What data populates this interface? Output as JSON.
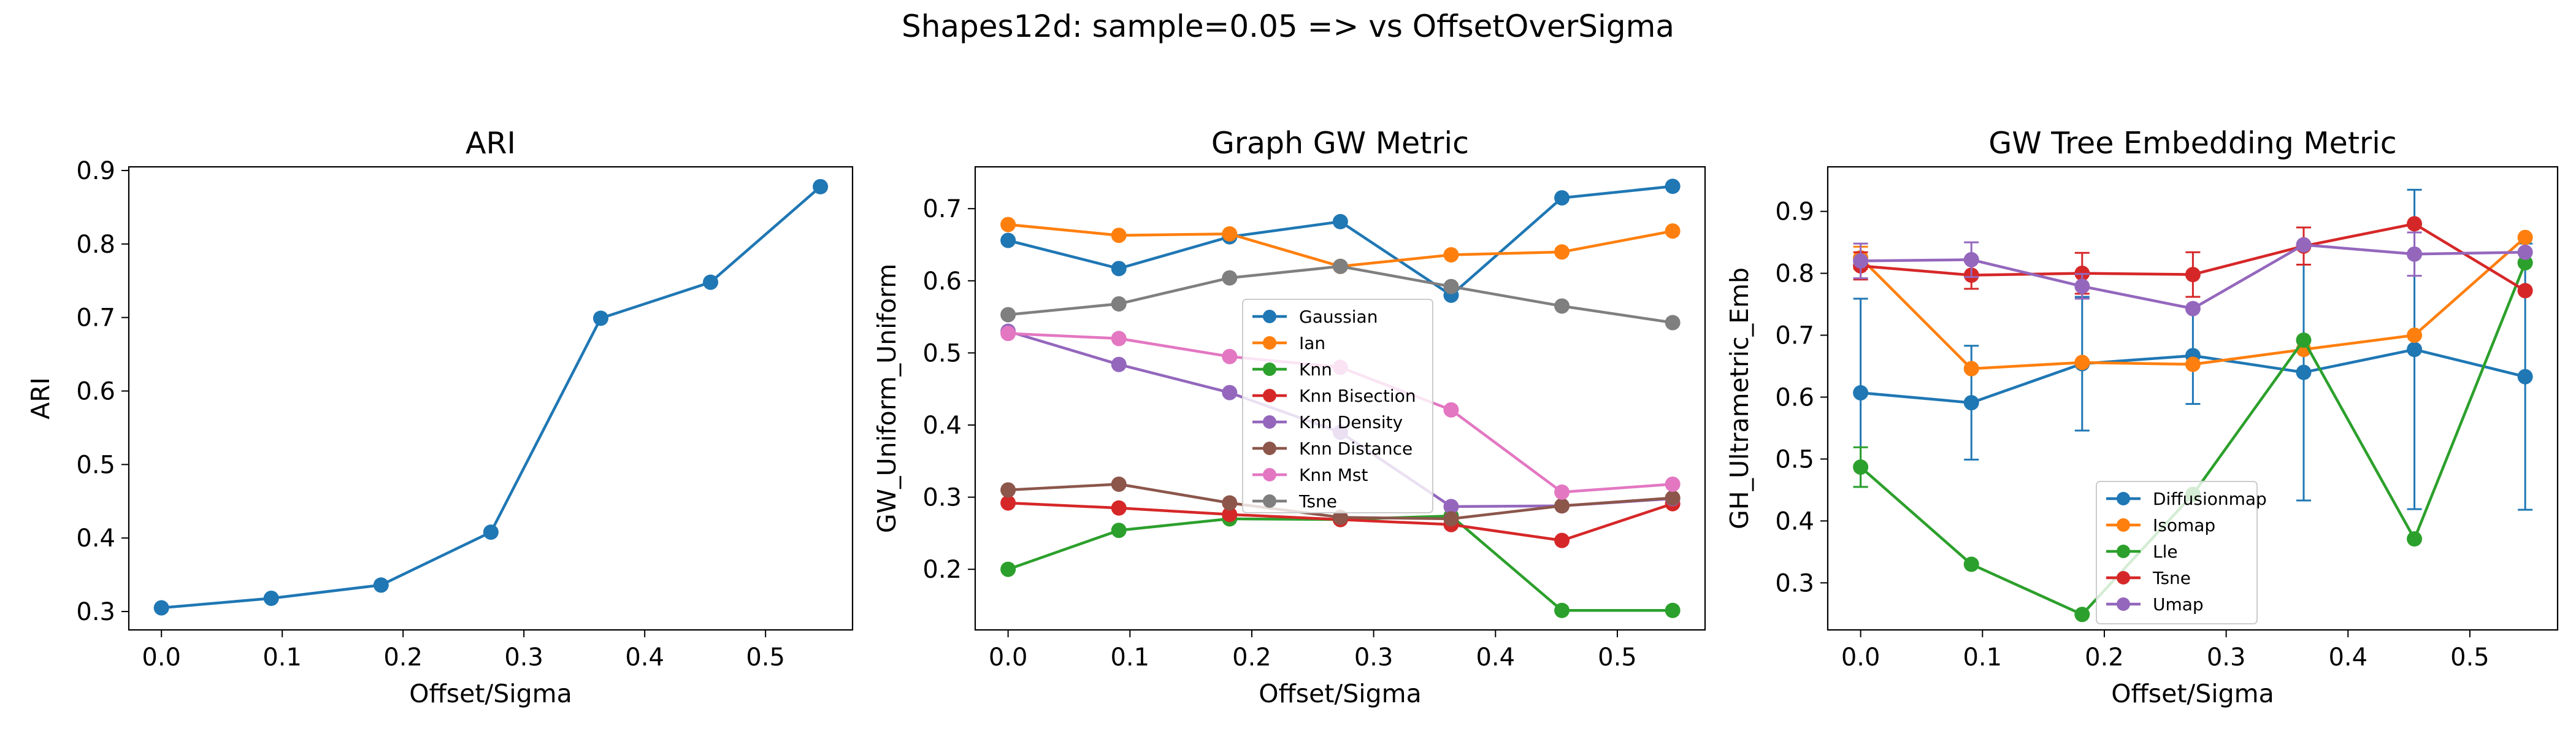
{
  "figure": {
    "suptitle": "Shapes12d: sample=0.05 => vs OffsetOverSigma"
  },
  "chart_data": [
    {
      "type": "line",
      "title": "ARI",
      "xlabel": "Offset/Sigma",
      "ylabel": "ARI",
      "x": [
        0.0,
        0.0909,
        0.1818,
        0.2727,
        0.3636,
        0.4545,
        0.5454
      ],
      "xlim": [
        -0.027,
        0.572
      ],
      "ylim": [
        0.275,
        0.905
      ],
      "xticks": [
        "0.0",
        "0.1",
        "0.2",
        "0.3",
        "0.4",
        "0.5"
      ],
      "yticks": [
        "0.3",
        "0.4",
        "0.5",
        "0.6",
        "0.7",
        "0.8",
        "0.9"
      ],
      "series": [
        {
          "values": [
            0.305,
            0.318,
            0.336,
            0.408,
            0.699,
            0.748,
            0.878
          ],
          "color": "#1f77b4"
        }
      ]
    },
    {
      "type": "line",
      "title": "Graph GW Metric",
      "xlabel": "Offset/Sigma",
      "ylabel": "GW_Uniform_Uniform",
      "x": [
        0.0,
        0.0909,
        0.1818,
        0.2727,
        0.3636,
        0.4545,
        0.5454
      ],
      "xlim": [
        -0.027,
        0.572
      ],
      "ylim": [
        0.116,
        0.758
      ],
      "xticks": [
        "0.0",
        "0.1",
        "0.2",
        "0.3",
        "0.4",
        "0.5"
      ],
      "yticks": [
        "0.2",
        "0.3",
        "0.4",
        "0.5",
        "0.6",
        "0.7"
      ],
      "legend": "center",
      "series": [
        {
          "name": "Gaussian",
          "color": "#1f77b4",
          "values": [
            0.656,
            0.617,
            0.661,
            0.682,
            0.58,
            0.715,
            0.731
          ]
        },
        {
          "name": "Ian",
          "color": "#ff7f0e",
          "values": [
            0.678,
            0.663,
            0.665,
            0.62,
            0.636,
            0.64,
            0.669
          ]
        },
        {
          "name": "Knn",
          "color": "#2ca02c",
          "values": [
            0.2,
            0.254,
            0.27,
            0.269,
            0.274,
            0.143,
            0.143
          ]
        },
        {
          "name": "Knn Bisection",
          "color": "#d62728",
          "values": [
            0.292,
            0.285,
            0.276,
            0.269,
            0.262,
            0.24,
            0.291
          ]
        },
        {
          "name": "Knn Density",
          "color": "#9467bd",
          "values": [
            0.53,
            0.484,
            0.445,
            0.39,
            0.287,
            0.288,
            0.298
          ]
        },
        {
          "name": "Knn Distance",
          "color": "#8c564b",
          "values": [
            0.31,
            0.318,
            0.292,
            0.272,
            0.27,
            0.288,
            0.299
          ]
        },
        {
          "name": "Knn Mst",
          "color": "#e377c2",
          "values": [
            0.527,
            0.52,
            0.495,
            0.48,
            0.421,
            0.307,
            0.318
          ]
        },
        {
          "name": "Tsne",
          "color": "#7f7f7f",
          "values": [
            0.553,
            0.568,
            0.604,
            0.62,
            0.592,
            0.565,
            0.542
          ]
        }
      ]
    },
    {
      "type": "line",
      "title": "GW Tree Embedding Metric",
      "xlabel": "Offset/Sigma",
      "ylabel": "GH_Ultrametric_Emb",
      "x": [
        0.0,
        0.0909,
        0.1818,
        0.2727,
        0.3636,
        0.4545,
        0.5454
      ],
      "xlim": [
        -0.027,
        0.572
      ],
      "ylim": [
        0.224,
        0.972
      ],
      "xticks": [
        "0.0",
        "0.1",
        "0.2",
        "0.3",
        "0.4",
        "0.5"
      ],
      "yticks": [
        "0.3",
        "0.4",
        "0.5",
        "0.6",
        "0.7",
        "0.8",
        "0.9"
      ],
      "legend": "lower center",
      "series": [
        {
          "name": "Diffusionmap",
          "color": "#1f77b4",
          "values": [
            0.607,
            0.591,
            0.654,
            0.667,
            0.64,
            0.677,
            0.633
          ],
          "err": [
            0.152,
            0.092,
            0.108,
            0.078,
            0.207,
            0.258,
            0.215
          ]
        },
        {
          "name": "Isomap",
          "color": "#ff7f0e",
          "values": [
            0.825,
            0.646,
            0.656,
            0.653,
            0.677,
            0.7,
            0.858
          ],
          "err": [
            0.018,
            0.0,
            0.0,
            0.0,
            0.0,
            0.0,
            0.0
          ]
        },
        {
          "name": "Lle",
          "color": "#2ca02c",
          "values": [
            0.487,
            0.33,
            0.249,
            0.443,
            0.692,
            0.371,
            0.817
          ],
          "err": [
            0.032,
            0.0,
            0.0,
            0.0,
            0.0,
            0.0,
            0.0
          ]
        },
        {
          "name": "Tsne",
          "color": "#d62728",
          "values": [
            0.812,
            0.797,
            0.8,
            0.798,
            0.844,
            0.88,
            0.772
          ],
          "err": [
            0.022,
            0.022,
            0.033,
            0.036,
            0.03,
            0.0,
            0.0
          ]
        },
        {
          "name": "Umap",
          "color": "#9467bd",
          "values": [
            0.82,
            0.822,
            0.779,
            0.743,
            0.846,
            0.831,
            0.834
          ],
          "err": [
            0.028,
            0.028,
            0.02,
            0.0,
            0.0,
            0.035,
            0.0
          ]
        }
      ]
    }
  ]
}
